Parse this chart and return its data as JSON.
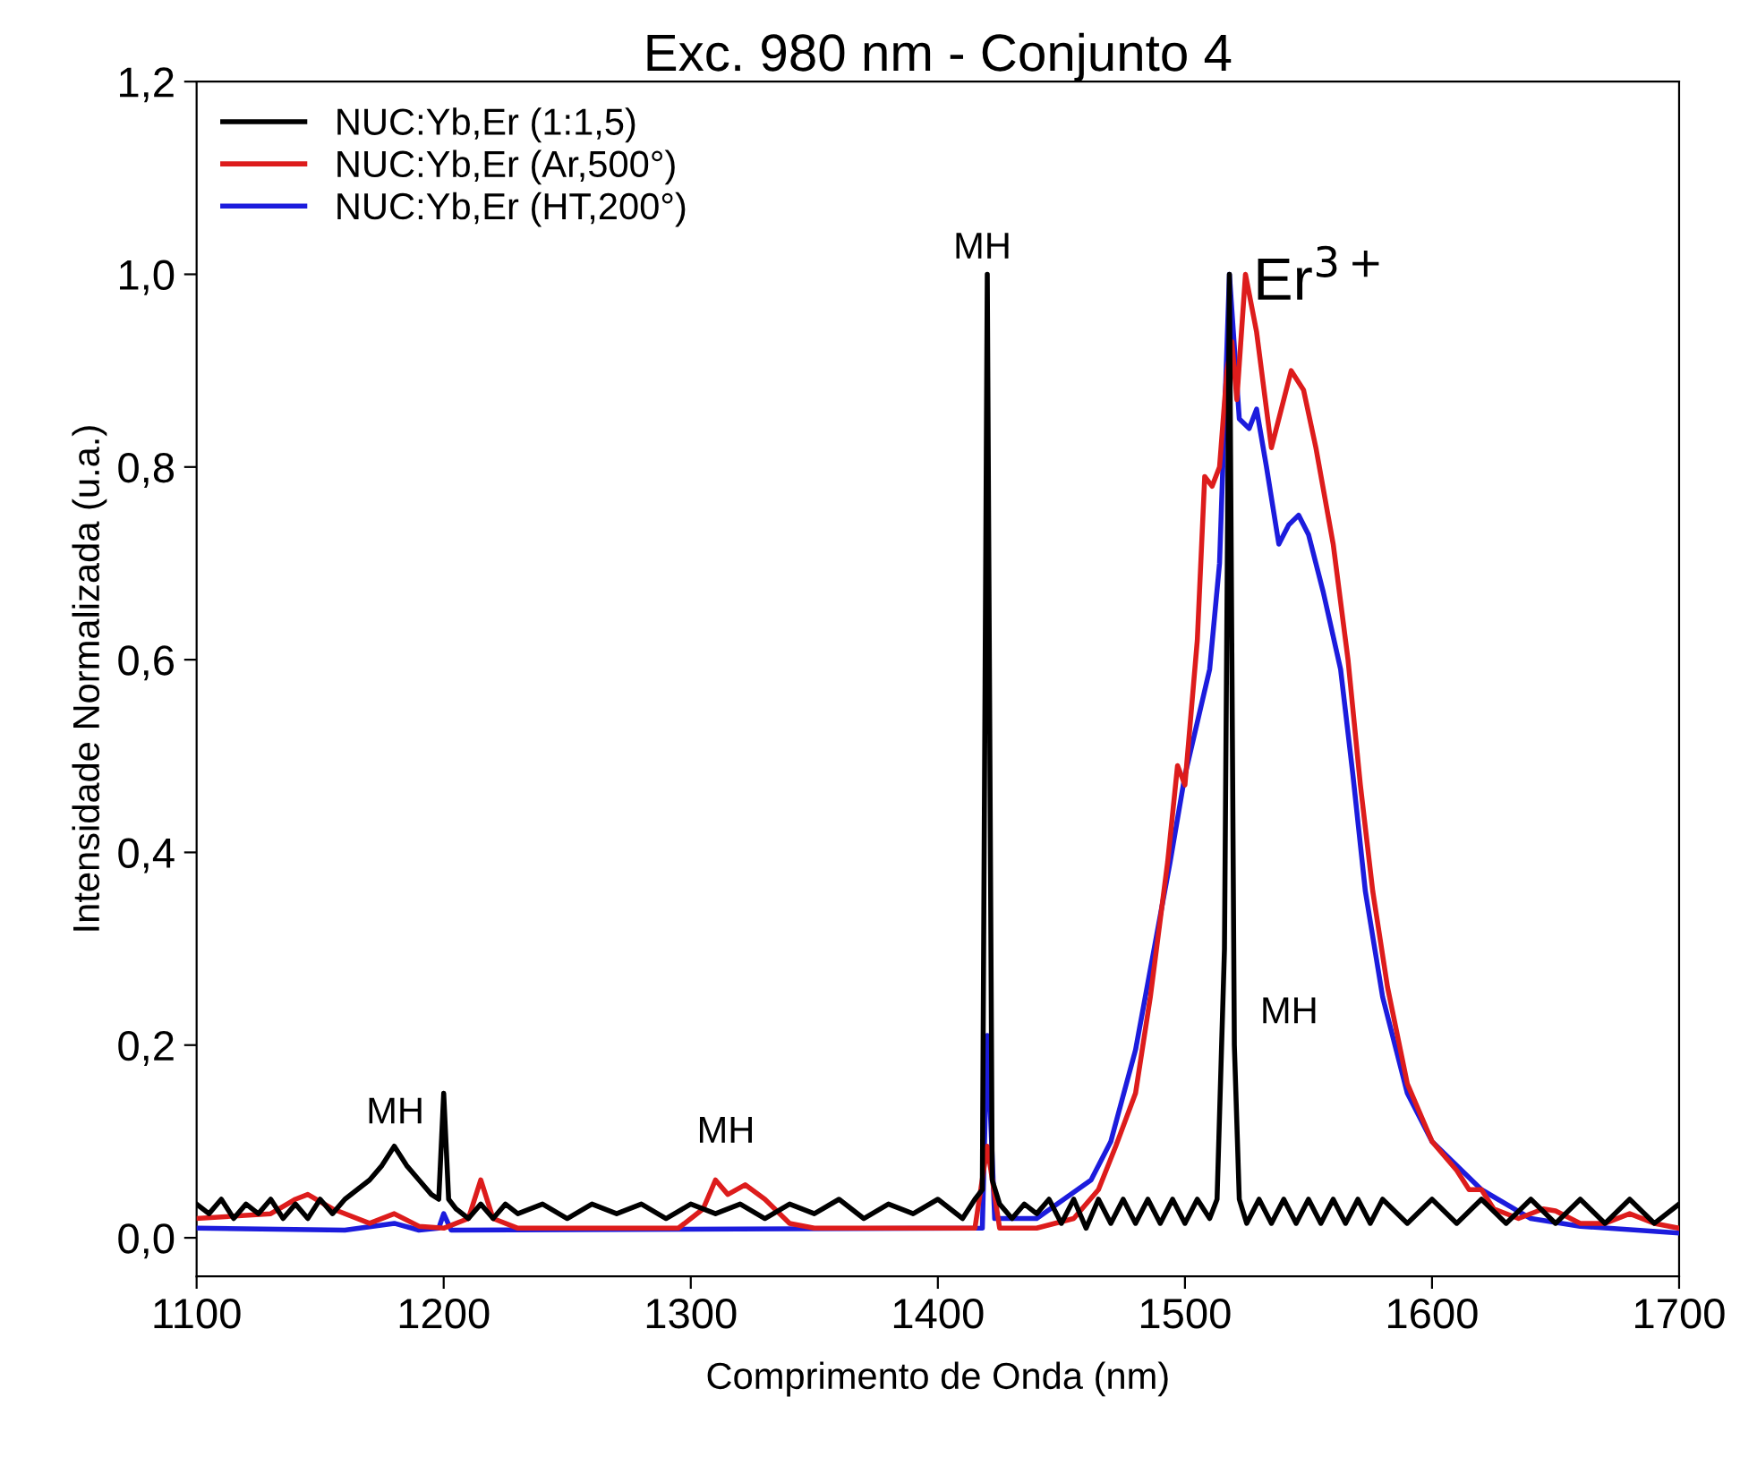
{
  "chart_data": {
    "type": "line",
    "title": "Exc. 980 nm - Conjunto 4",
    "xlabel": "Comprimento de Onda (nm)",
    "ylabel": "Intensidade Normalizada (u.a.)",
    "xlim": [
      1100,
      1700
    ],
    "ylim": [
      -0.04,
      1.2
    ],
    "xticks": [
      1100,
      1200,
      1300,
      1400,
      1500,
      1600,
      1700
    ],
    "yticks": [
      {
        "value": 0,
        "label": "0,0"
      },
      {
        "value": 0.2,
        "label": "0,2"
      },
      {
        "value": 0.4,
        "label": "0,4"
      },
      {
        "value": 0.6,
        "label": "0,6"
      },
      {
        "value": 0.8,
        "label": "0,8"
      },
      {
        "value": 1.0,
        "label": "1,0"
      },
      {
        "value": 1.2,
        "label": "1,2"
      }
    ],
    "grid": false,
    "legend": "top left",
    "marker": "none",
    "line_style": "solid",
    "annotations": [
      "MH",
      "MH",
      "MH",
      "MH",
      "Er$^{3+}$"
    ],
    "series": [
      {
        "name": "NUC:Yb,Er (1:1,5)",
        "color": "#000000",
        "x": [
          1100,
          1105,
          1110,
          1115,
          1120,
          1125,
          1130,
          1135,
          1140,
          1145,
          1150,
          1155,
          1160,
          1165,
          1170,
          1175,
          1180,
          1185,
          1190,
          1195,
          1198,
          1200,
          1202,
          1205,
          1210,
          1215,
          1220,
          1225,
          1230,
          1240,
          1250,
          1260,
          1270,
          1280,
          1290,
          1300,
          1310,
          1320,
          1330,
          1340,
          1350,
          1360,
          1370,
          1380,
          1390,
          1400,
          1410,
          1415,
          1418,
          1420,
          1422,
          1425,
          1430,
          1435,
          1440,
          1445,
          1450,
          1455,
          1460,
          1465,
          1470,
          1475,
          1480,
          1485,
          1490,
          1495,
          1500,
          1505,
          1510,
          1513,
          1516,
          1518,
          1520,
          1522,
          1525,
          1530,
          1535,
          1540,
          1545,
          1550,
          1555,
          1560,
          1565,
          1570,
          1575,
          1580,
          1590,
          1600,
          1610,
          1620,
          1630,
          1640,
          1650,
          1660,
          1670,
          1680,
          1690,
          1700
        ],
        "values": [
          0.035,
          0.025,
          0.04,
          0.02,
          0.035,
          0.025,
          0.04,
          0.02,
          0.035,
          0.02,
          0.04,
          0.025,
          0.04,
          0.05,
          0.06,
          0.075,
          0.095,
          0.075,
          0.06,
          0.045,
          0.04,
          0.15,
          0.04,
          0.03,
          0.02,
          0.035,
          0.02,
          0.035,
          0.025,
          0.035,
          0.02,
          0.035,
          0.025,
          0.035,
          0.02,
          0.035,
          0.025,
          0.035,
          0.02,
          0.035,
          0.025,
          0.04,
          0.02,
          0.035,
          0.025,
          0.04,
          0.02,
          0.04,
          0.05,
          1.0,
          0.06,
          0.035,
          0.02,
          0.035,
          0.025,
          0.04,
          0.015,
          0.04,
          0.01,
          0.04,
          0.015,
          0.04,
          0.015,
          0.04,
          0.015,
          0.04,
          0.015,
          0.04,
          0.02,
          0.04,
          0.3,
          1.0,
          0.2,
          0.04,
          0.015,
          0.04,
          0.015,
          0.04,
          0.015,
          0.04,
          0.015,
          0.04,
          0.015,
          0.04,
          0.015,
          0.04,
          0.015,
          0.04,
          0.015,
          0.04,
          0.015,
          0.04,
          0.015,
          0.04,
          0.015,
          0.04,
          0.015,
          0.035
        ]
      },
      {
        "name": "NUC:Yb,Er (Ar,500°)",
        "color": "#dd1c1c",
        "x": [
          1100,
          1130,
          1140,
          1145,
          1155,
          1170,
          1180,
          1190,
          1200,
          1210,
          1215,
          1220,
          1230,
          1295,
          1305,
          1310,
          1315,
          1322,
          1330,
          1340,
          1350,
          1415,
          1420,
          1425,
          1440,
          1455,
          1465,
          1472,
          1480,
          1486,
          1493,
          1497,
          1500,
          1505,
          1508,
          1511,
          1514,
          1517,
          1519,
          1521,
          1524.5,
          1529,
          1535,
          1539,
          1543,
          1548,
          1553,
          1560,
          1566,
          1571,
          1576,
          1582,
          1590,
          1600,
          1610,
          1615,
          1620,
          1625,
          1635,
          1645,
          1650,
          1660,
          1670,
          1680,
          1690,
          1700
        ],
        "values": [
          0.02,
          0.025,
          0.04,
          0.045,
          0.03,
          0.015,
          0.025,
          0.012,
          0.01,
          0.02,
          0.06,
          0.02,
          0.01,
          0.01,
          0.03,
          0.06,
          0.045,
          0.055,
          0.04,
          0.015,
          0.01,
          0.01,
          0.095,
          0.01,
          0.01,
          0.02,
          0.05,
          0.095,
          0.15,
          0.25,
          0.39,
          0.49,
          0.47,
          0.62,
          0.79,
          0.78,
          0.8,
          0.9,
          0.93,
          0.87,
          1.0,
          0.94,
          0.82,
          0.86,
          0.9,
          0.88,
          0.82,
          0.72,
          0.6,
          0.47,
          0.36,
          0.26,
          0.16,
          0.1,
          0.07,
          0.05,
          0.05,
          0.03,
          0.02,
          0.03,
          0.028,
          0.015,
          0.015,
          0.025,
          0.015,
          0.01
        ]
      },
      {
        "name": "NUC:Yb,Er (HT,200°)",
        "color": "#1c1cdd",
        "x": [
          1100,
          1160,
          1180,
          1190,
          1198,
          1200,
          1203,
          1418,
          1420,
          1423,
          1440,
          1462,
          1470,
          1480,
          1494,
          1500,
          1510,
          1514,
          1518,
          1522,
          1526,
          1529,
          1533,
          1538,
          1542,
          1546,
          1550,
          1556,
          1563,
          1568,
          1573,
          1580,
          1590,
          1600,
          1620,
          1640,
          1660,
          1700
        ],
        "values": [
          0.01,
          0.008,
          0.015,
          0.008,
          0.01,
          0.025,
          0.008,
          0.01,
          0.21,
          0.02,
          0.02,
          0.06,
          0.1,
          0.195,
          0.39,
          0.48,
          0.59,
          0.7,
          1.0,
          0.85,
          0.84,
          0.86,
          0.8,
          0.72,
          0.74,
          0.75,
          0.73,
          0.67,
          0.59,
          0.48,
          0.36,
          0.25,
          0.15,
          0.1,
          0.05,
          0.02,
          0.012,
          0.005
        ]
      }
    ]
  }
}
